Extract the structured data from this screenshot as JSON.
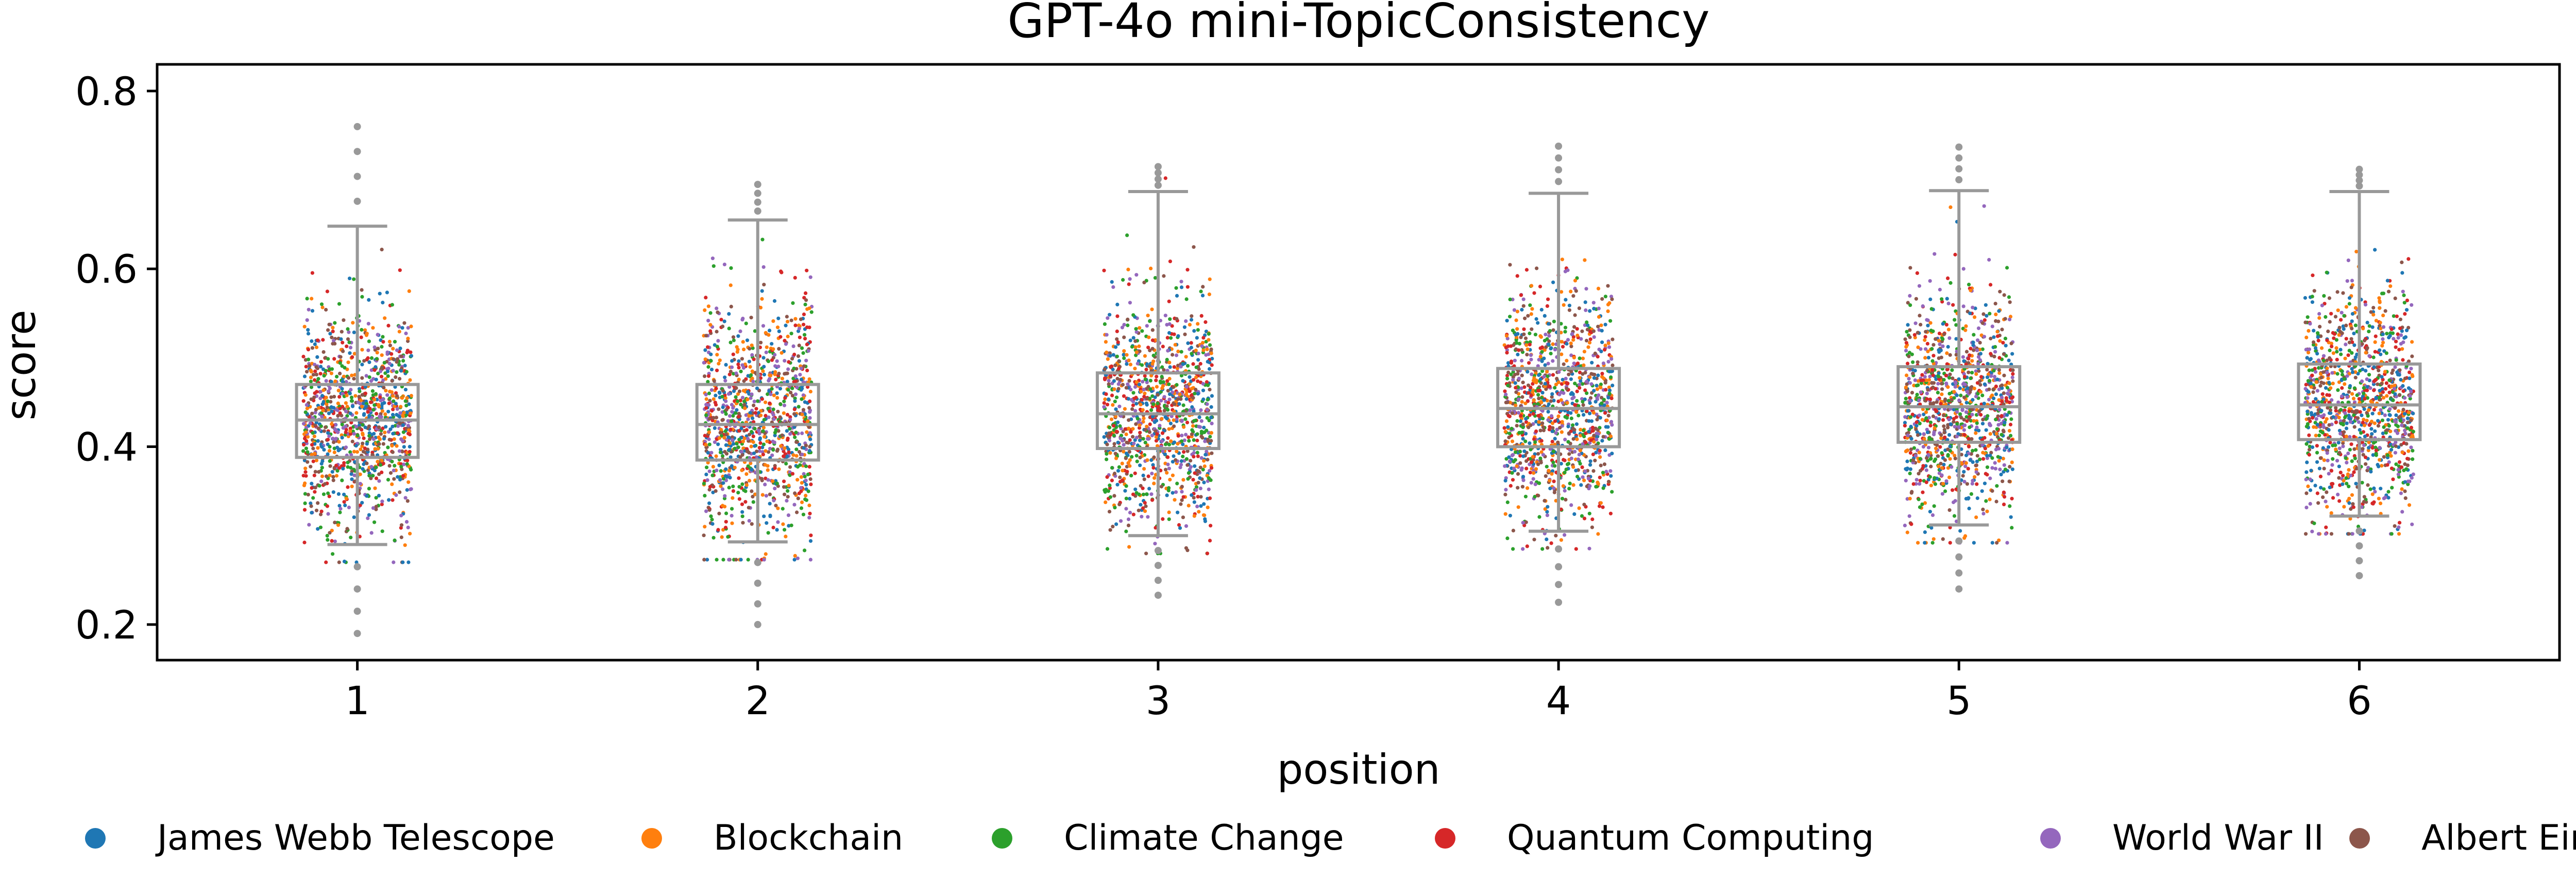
{
  "chart_data": {
    "type": "box",
    "title": "GPT-4o mini-TopicConsistency",
    "xlabel": "position",
    "ylabel": "score",
    "categories": [
      "1",
      "2",
      "3",
      "4",
      "5",
      "6"
    ],
    "yticks": [
      "0.2",
      "0.4",
      "0.6",
      "0.8"
    ],
    "ylim": [
      0.16,
      0.83
    ],
    "grid": false,
    "legend_position": "bottom",
    "box_color": "#999999",
    "boxes": [
      {
        "position": "1",
        "q1": 0.388,
        "median": 0.43,
        "q3": 0.47,
        "whisker_low": 0.29,
        "whisker_high": 0.648,
        "min": 0.19,
        "max": 0.76
      },
      {
        "position": "2",
        "q1": 0.385,
        "median": 0.425,
        "q3": 0.47,
        "whisker_low": 0.293,
        "whisker_high": 0.655,
        "min": 0.2,
        "max": 0.695
      },
      {
        "position": "3",
        "q1": 0.398,
        "median": 0.437,
        "q3": 0.483,
        "whisker_low": 0.3,
        "whisker_high": 0.687,
        "min": 0.233,
        "max": 0.715
      },
      {
        "position": "4",
        "q1": 0.4,
        "median": 0.443,
        "q3": 0.488,
        "whisker_low": 0.305,
        "whisker_high": 0.685,
        "min": 0.225,
        "max": 0.738
      },
      {
        "position": "5",
        "q1": 0.405,
        "median": 0.445,
        "q3": 0.49,
        "whisker_low": 0.312,
        "whisker_high": 0.688,
        "min": 0.24,
        "max": 0.737
      },
      {
        "position": "6",
        "q1": 0.408,
        "median": 0.447,
        "q3": 0.493,
        "whisker_low": 0.322,
        "whisker_high": 0.687,
        "min": 0.255,
        "max": 0.712
      }
    ],
    "series": [
      {
        "name": "James Webb Telescope",
        "color": "#1f77b4"
      },
      {
        "name": "Blockchain",
        "color": "#ff7f0e"
      },
      {
        "name": "Climate Change",
        "color": "#2ca02c"
      },
      {
        "name": "Quantum Computing",
        "color": "#d62728"
      },
      {
        "name": "World War II",
        "color": "#9467bd"
      },
      {
        "name": "Albert Einstein",
        "color": "#8c564b"
      }
    ]
  }
}
